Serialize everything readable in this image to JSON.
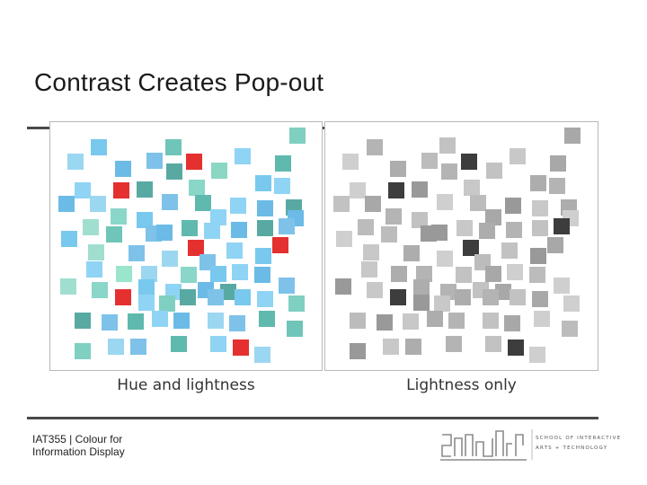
{
  "slide": {
    "title": "Contrast Creates Pop-out"
  },
  "panels": [
    {
      "id": "hue",
      "caption": "Hue and lightness"
    },
    {
      "id": "light",
      "caption": "Lightness only"
    }
  ],
  "footer": {
    "course_line1": "IAT355  |  Colour for",
    "course_line2": "Information Display"
  },
  "logo": {
    "lines": [
      "SCHOOL OF INTERACTIVE",
      "ARTS + TECHNOLOGY"
    ]
  },
  "colors": {
    "target_hue": "#e53030",
    "target_gray": "#3d3d3d",
    "rule": "#4a4a4a"
  }
}
